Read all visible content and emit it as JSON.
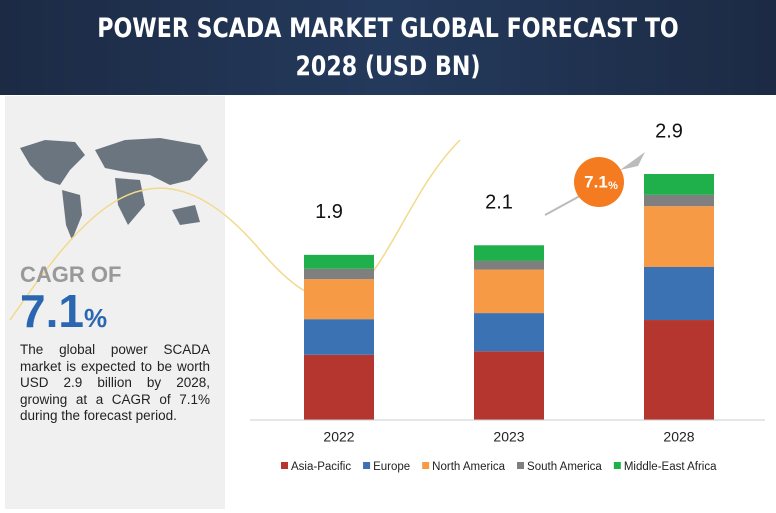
{
  "chart_data": {
    "type": "stacked-bar",
    "title": "POWER SCADA MARKET GLOBAL FORECAST TO 2028 (USD BN)",
    "categories": [
      "2022",
      "2023",
      "2028"
    ],
    "series": [
      {
        "name": "Asia-Pacific",
        "color": "#b5352f",
        "values": [
          0.75,
          0.79,
          1.15
        ]
      },
      {
        "name": "Europe",
        "color": "#3b72b4",
        "values": [
          0.41,
          0.44,
          0.61
        ]
      },
      {
        "name": "North America",
        "color": "#f79a45",
        "values": [
          0.46,
          0.5,
          0.7
        ]
      },
      {
        "name": "South America",
        "color": "#7f7f7f",
        "values": [
          0.12,
          0.1,
          0.13
        ]
      },
      {
        "name": "Middle-East Africa",
        "color": "#1fb04c",
        "values": [
          0.16,
          0.18,
          0.24
        ]
      }
    ],
    "totals": [
      1.9,
      2.1,
      2.9
    ]
  },
  "panel": {
    "cagr_label": "CAGR OF",
    "cagr_value": "7.1",
    "cagr_unit": "%",
    "description": "The global power SCADA market is expected to be worth USD 2.9 billion by 2028, growing at a CAGR of 7.1% during the forecast period."
  }
}
